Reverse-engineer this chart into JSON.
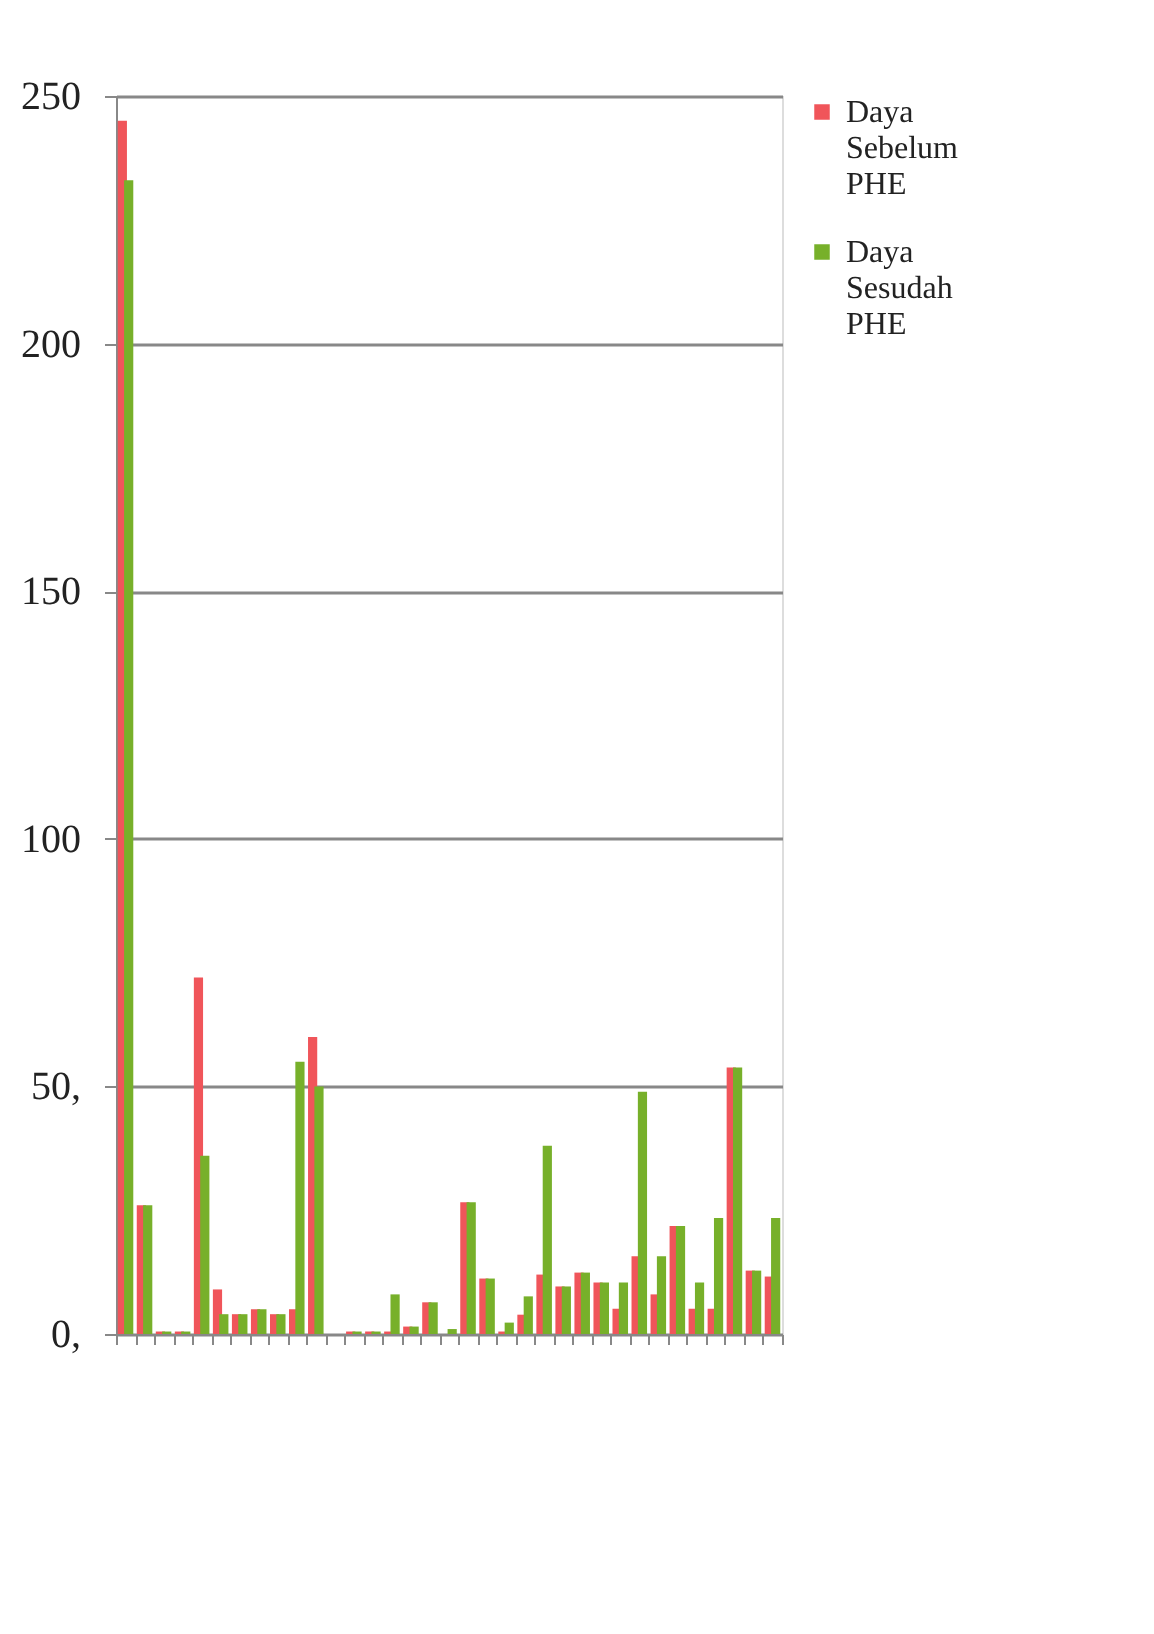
{
  "chart_data": {
    "type": "bar",
    "categories": [
      null,
      null,
      null,
      null,
      null,
      null,
      null,
      null,
      null,
      null,
      null,
      null,
      null,
      null,
      null,
      null,
      null,
      null,
      null,
      null,
      null,
      null,
      null,
      null,
      null,
      null,
      null,
      null,
      null,
      null,
      null,
      null,
      null,
      null,
      null
    ],
    "series": [
      {
        "name": "Daya Sebelum PHE",
        "color": "#f0555a",
        "values": [
          245,
          26,
          0.5,
          0.5,
          72,
          9,
          4,
          5,
          4,
          5,
          60,
          0,
          0.5,
          0.5,
          0.5,
          1.5,
          6.4,
          0,
          26.6,
          11.2,
          0.5,
          3.9,
          12,
          9.6,
          12.4,
          10.4,
          5.1,
          15.7,
          8,
          21.8,
          5.1,
          5.1,
          53.8,
          12.8,
          11.6
        ]
      },
      {
        "name": "Daya Sesudah PHE",
        "color": "#77b02a",
        "values": [
          233,
          26,
          0.5,
          0.5,
          36,
          4,
          4,
          5,
          4,
          55,
          50,
          0,
          0.5,
          0.5,
          8,
          1.5,
          6.4,
          1,
          26.6,
          11.2,
          2.3,
          7.6,
          38,
          9.6,
          12.4,
          10.4,
          10.4,
          48.9,
          15.7,
          21.8,
          10.4,
          23.4,
          53.8,
          12.8,
          23.4
        ]
      }
    ],
    "ylim": [
      0,
      250
    ],
    "yticks": [
      {
        "value": 0,
        "label": "0,"
      },
      {
        "value": 50,
        "label": "50,"
      },
      100,
      150,
      200,
      250
    ],
    "grid": "y",
    "legend": "right",
    "tick_labels": "y"
  }
}
